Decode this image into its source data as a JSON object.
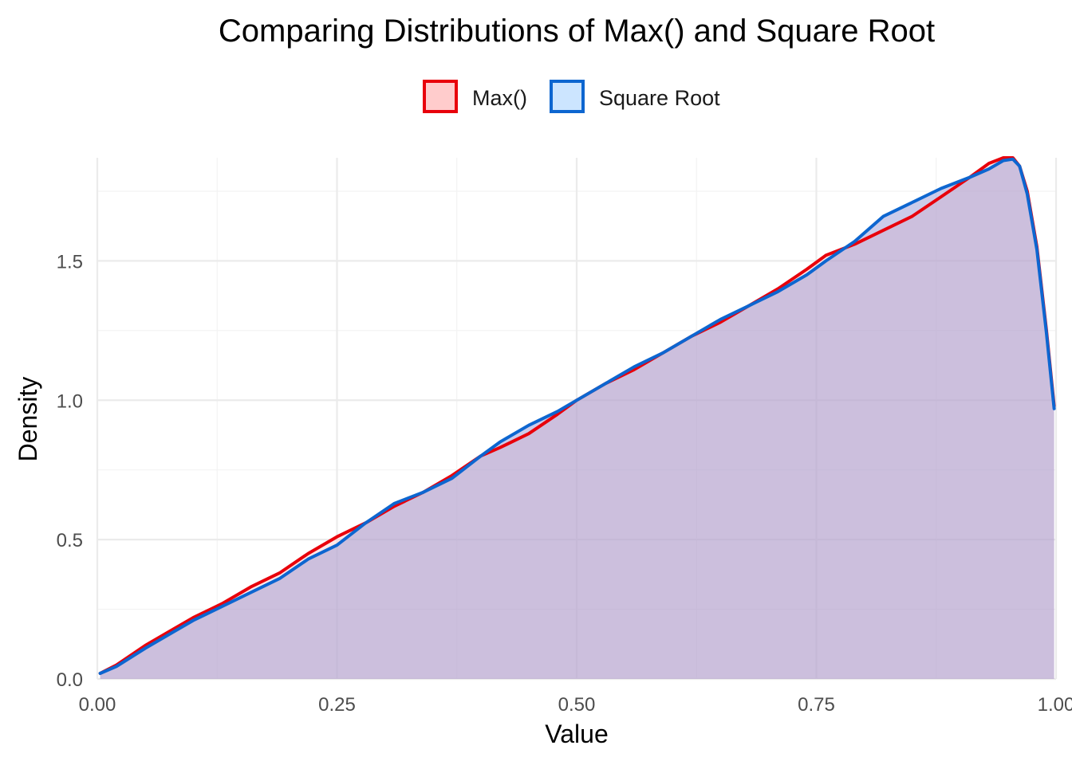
{
  "chart_data": {
    "type": "area",
    "title": "Comparing Distributions of Max() and Square Root",
    "xlabel": "Value",
    "ylabel": "Density",
    "xlim": [
      0,
      1
    ],
    "ylim": [
      0,
      1.87
    ],
    "x_ticks": [
      0,
      0.25,
      0.5,
      0.75,
      1
    ],
    "x_tick_labels": [
      "0.00",
      "0.25",
      "0.50",
      "0.75",
      "1.00"
    ],
    "y_ticks": [
      0,
      0.5,
      1,
      1.5
    ],
    "y_tick_labels": [
      "0.0",
      "0.5",
      "1.0",
      "1.5"
    ],
    "grid": true,
    "legend_position": "top",
    "series": [
      {
        "name": "Max()",
        "line_color": "#e8000b",
        "fill_color": "#ffcccc",
        "x": [
          0.003,
          0.02,
          0.05,
          0.08,
          0.1,
          0.13,
          0.16,
          0.19,
          0.22,
          0.25,
          0.28,
          0.31,
          0.34,
          0.37,
          0.4,
          0.42,
          0.45,
          0.48,
          0.5,
          0.53,
          0.56,
          0.59,
          0.62,
          0.65,
          0.68,
          0.71,
          0.74,
          0.76,
          0.79,
          0.82,
          0.85,
          0.88,
          0.91,
          0.93,
          0.945,
          0.955,
          0.962,
          0.97,
          0.98,
          0.99,
          0.998
        ],
        "y": [
          0.02,
          0.05,
          0.12,
          0.18,
          0.22,
          0.27,
          0.33,
          0.38,
          0.45,
          0.51,
          0.56,
          0.62,
          0.67,
          0.73,
          0.8,
          0.83,
          0.88,
          0.95,
          1.0,
          1.06,
          1.11,
          1.17,
          1.23,
          1.28,
          1.34,
          1.4,
          1.47,
          1.52,
          1.56,
          1.61,
          1.66,
          1.73,
          1.8,
          1.85,
          1.87,
          1.87,
          1.84,
          1.75,
          1.55,
          1.25,
          0.98
        ]
      },
      {
        "name": "Square Root",
        "line_color": "#0d66d0",
        "fill_color": "#cce5ff",
        "x": [
          0.003,
          0.02,
          0.05,
          0.08,
          0.1,
          0.13,
          0.16,
          0.19,
          0.22,
          0.25,
          0.28,
          0.31,
          0.34,
          0.37,
          0.4,
          0.42,
          0.45,
          0.48,
          0.5,
          0.53,
          0.56,
          0.59,
          0.62,
          0.65,
          0.68,
          0.71,
          0.74,
          0.76,
          0.79,
          0.82,
          0.85,
          0.88,
          0.91,
          0.93,
          0.945,
          0.955,
          0.962,
          0.97,
          0.98,
          0.99,
          0.998
        ],
        "y": [
          0.02,
          0.045,
          0.11,
          0.17,
          0.21,
          0.26,
          0.31,
          0.36,
          0.43,
          0.48,
          0.56,
          0.63,
          0.67,
          0.72,
          0.8,
          0.85,
          0.91,
          0.96,
          1.0,
          1.06,
          1.12,
          1.17,
          1.23,
          1.29,
          1.34,
          1.39,
          1.45,
          1.5,
          1.57,
          1.66,
          1.71,
          1.76,
          1.8,
          1.83,
          1.86,
          1.865,
          1.84,
          1.74,
          1.54,
          1.24,
          0.97
        ]
      }
    ]
  }
}
